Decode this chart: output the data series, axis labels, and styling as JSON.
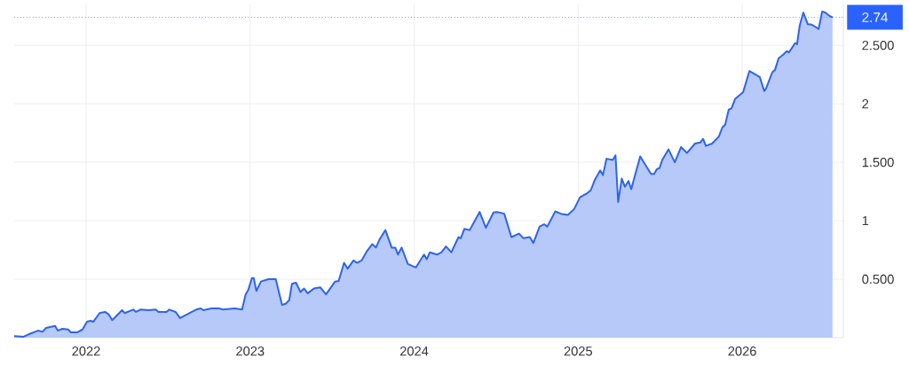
{
  "chart_data": {
    "type": "area",
    "x": [
      "2021-07-25",
      "2021-08-15",
      "2021-08-27",
      "2021-09-16",
      "2021-09-26",
      "2021-10-04",
      "2021-10-24",
      "2021-10-30",
      "2021-11-09",
      "2021-11-22",
      "2021-11-28",
      "2021-12-12",
      "2021-12-24",
      "2022-01-03",
      "2022-01-11",
      "2022-01-17",
      "2022-01-31",
      "2022-02-12",
      "2022-02-20",
      "2022-02-28",
      "2022-03-22",
      "2022-03-28",
      "2022-04-16",
      "2022-04-22",
      "2022-05-02",
      "2022-05-20",
      "2022-06-05",
      "2022-06-11",
      "2022-06-29",
      "2022-07-05",
      "2022-07-19",
      "2022-07-29",
      "2022-08-14",
      "2022-09-03",
      "2022-09-13",
      "2022-09-19",
      "2022-10-07",
      "2022-10-23",
      "2022-11-02",
      "2022-11-28",
      "2022-12-14",
      "2022-12-22",
      "2022-12-28",
      "2023-01-05",
      "2023-01-09",
      "2023-01-15",
      "2023-01-25",
      "2023-02-11",
      "2023-02-27",
      "2023-03-13",
      "2023-03-21",
      "2023-03-29",
      "2023-04-04",
      "2023-04-13",
      "2023-04-23",
      "2023-05-01",
      "2023-05-09",
      "2023-05-23",
      "2023-06-06",
      "2023-06-19",
      "2023-07-09",
      "2023-07-17",
      "2023-07-29",
      "2023-08-06",
      "2023-08-19",
      "2023-08-27",
      "2023-09-06",
      "2023-09-18",
      "2023-09-30",
      "2023-10-08",
      "2023-10-16",
      "2023-10-29",
      "2023-11-12",
      "2023-11-20",
      "2023-11-26",
      "2023-12-04",
      "2023-12-18",
      "2024-01-05",
      "2024-01-23",
      "2024-01-29",
      "2024-02-05",
      "2024-02-21",
      "2024-03-02",
      "2024-03-12",
      "2024-03-24",
      "2024-04-09",
      "2024-04-14",
      "2024-04-22",
      "2024-05-04",
      "2024-05-26",
      "2024-06-09",
      "2024-06-26",
      "2024-07-04",
      "2024-07-20",
      "2024-08-05",
      "2024-08-22",
      "2024-09-01",
      "2024-09-15",
      "2024-09-23",
      "2024-10-07",
      "2024-10-17",
      "2024-10-24",
      "2024-11-11",
      "2024-11-23",
      "2024-12-09",
      "2024-12-23",
      "2025-01-05",
      "2025-01-19",
      "2025-01-29",
      "2025-02-07",
      "2025-02-19",
      "2025-02-25",
      "2025-03-05",
      "2025-03-19",
      "2025-03-25",
      "2025-03-31",
      "2025-04-08",
      "2025-04-15",
      "2025-04-23",
      "2025-04-29",
      "2025-05-19",
      "2025-06-12",
      "2025-06-19",
      "2025-06-25",
      "2025-07-01",
      "2025-07-07",
      "2025-07-21",
      "2025-08-04",
      "2025-08-18",
      "2025-08-31",
      "2025-09-18",
      "2025-09-30",
      "2025-10-06",
      "2025-10-12",
      "2025-10-26",
      "2025-11-10",
      "2025-11-18",
      "2025-11-24",
      "2025-12-02",
      "2025-12-08",
      "2025-12-16",
      "2026-01-03",
      "2026-01-17",
      "2026-02-09",
      "2026-02-19",
      "2026-02-23",
      "2026-03-09",
      "2026-03-15",
      "2026-03-23",
      "2026-04-02",
      "2026-04-10",
      "2026-04-15",
      "2026-04-29",
      "2026-05-03",
      "2026-05-09",
      "2026-05-17",
      "2026-05-27",
      "2026-06-02",
      "2026-06-08",
      "2026-06-20",
      "2026-06-28",
      "2026-07-05",
      "2026-07-15",
      "2026-07-21"
    ],
    "series": [
      {
        "color": "#2e64ec",
        "values": [
          0.013,
          0.008,
          0.03,
          0.06,
          0.05,
          0.083,
          0.1,
          0.06,
          0.076,
          0.07,
          0.045,
          0.045,
          0.07,
          0.136,
          0.144,
          0.136,
          0.21,
          0.22,
          0.2,
          0.15,
          0.235,
          0.21,
          0.24,
          0.22,
          0.24,
          0.235,
          0.24,
          0.22,
          0.22,
          0.24,
          0.22,
          0.167,
          0.2,
          0.24,
          0.25,
          0.235,
          0.25,
          0.25,
          0.24,
          0.25,
          0.24,
          0.37,
          0.41,
          0.51,
          0.51,
          0.4,
          0.48,
          0.5,
          0.5,
          0.28,
          0.29,
          0.32,
          0.46,
          0.47,
          0.39,
          0.42,
          0.38,
          0.42,
          0.43,
          0.37,
          0.48,
          0.485,
          0.64,
          0.59,
          0.66,
          0.64,
          0.66,
          0.74,
          0.8,
          0.77,
          0.84,
          0.92,
          0.77,
          0.77,
          0.71,
          0.77,
          0.63,
          0.6,
          0.71,
          0.67,
          0.73,
          0.71,
          0.73,
          0.78,
          0.73,
          0.86,
          0.85,
          0.93,
          0.92,
          1.075,
          0.94,
          1.07,
          1.075,
          1.06,
          0.86,
          0.89,
          0.85,
          0.86,
          0.81,
          0.95,
          0.97,
          0.95,
          1.08,
          1.06,
          1.05,
          1.1,
          1.2,
          1.23,
          1.26,
          1.35,
          1.43,
          1.39,
          1.53,
          1.52,
          1.56,
          1.16,
          1.36,
          1.29,
          1.34,
          1.27,
          1.55,
          1.4,
          1.4,
          1.44,
          1.45,
          1.52,
          1.61,
          1.5,
          1.63,
          1.58,
          1.66,
          1.67,
          1.7,
          1.64,
          1.66,
          1.72,
          1.8,
          1.82,
          1.95,
          1.96,
          2.04,
          2.1,
          2.28,
          2.23,
          2.11,
          2.13,
          2.27,
          2.29,
          2.39,
          2.42,
          2.45,
          2.44,
          2.52,
          2.51,
          2.67,
          2.78,
          2.68,
          2.68,
          2.67,
          2.64,
          2.79,
          2.78,
          2.75,
          2.74
        ]
      }
    ],
    "xlim": [
      "2021-07-25",
      "2026-08-14"
    ],
    "xticks": [
      "2022",
      "2023",
      "2024",
      "2025",
      "2026"
    ],
    "ylim": [
      0,
      2.85
    ],
    "yticks": [
      {
        "value": 0.5,
        "label": "0.500"
      },
      1,
      {
        "value": 1.5,
        "label": "1.500"
      },
      2,
      {
        "value": 2.5,
        "label": "2.500"
      }
    ],
    "grid": true,
    "ref_lines": [
      {
        "axis": "y",
        "value": 2.74,
        "label": "2.74",
        "color": "#2962ff",
        "line_style": "dotted"
      }
    ]
  }
}
